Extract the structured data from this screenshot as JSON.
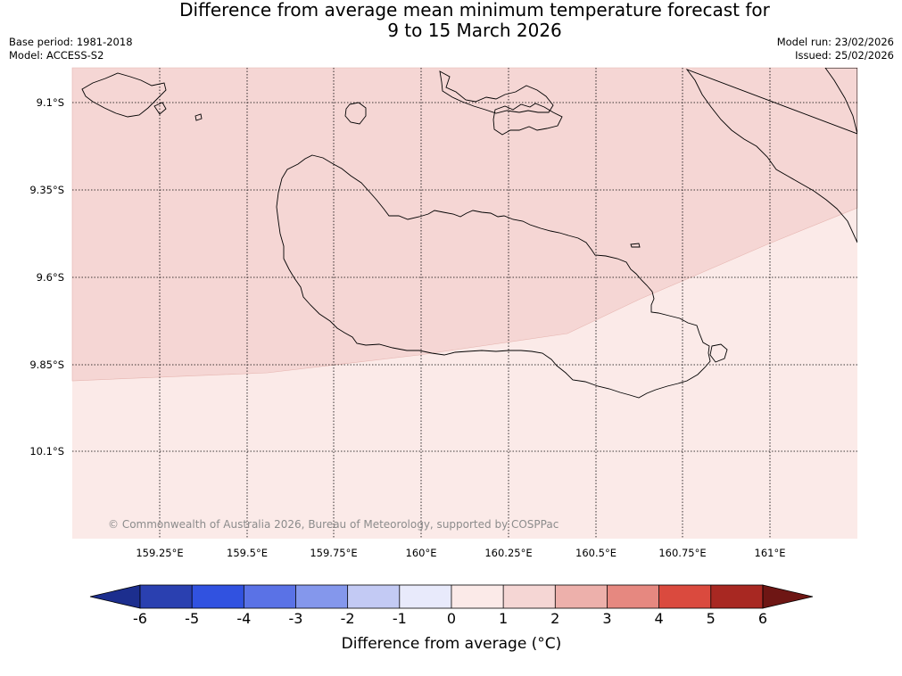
{
  "title": {
    "line1": "Difference from average mean minimum temperature forecast for",
    "line2": "9 to 15 March 2026"
  },
  "info": {
    "base_period": "Base period: 1981-2018",
    "model": "Model: ACCESS-S2",
    "model_run": "Model run: 23/02/2026",
    "issued": "Issued: 25/02/2026"
  },
  "map": {
    "lat_labels": [
      "9.1°S",
      "9.35°S",
      "9.6°S",
      "9.85°S",
      "10.1°S"
    ],
    "lon_labels": [
      "159.25°E",
      "159.5°E",
      "159.75°E",
      "160°E",
      "160.25°E",
      "160.5°E",
      "160.75°E",
      "161°E"
    ],
    "copyright": "© Commonwealth of Australia 2026, Bureau of Meteorology, supported by COSPPac",
    "anomaly_north": "1 to 2",
    "anomaly_south": "0 to 1"
  },
  "colorbar": {
    "ticks": [
      "-6",
      "-5",
      "-4",
      "-3",
      "-2",
      "-1",
      "0",
      "1",
      "2",
      "3",
      "4",
      "5",
      "6"
    ],
    "colors": [
      "#1c2e8e",
      "#2a40b0",
      "#3152e0",
      "#5a72e6",
      "#8497ec",
      "#c3caf4",
      "#e8eafb",
      "#fbeae8",
      "#f5d6d4",
      "#edb0ab",
      "#e68880",
      "#da4a3e",
      "#a82822",
      "#6e1614"
    ],
    "label": "Difference from average (°C)"
  },
  "colors": {
    "anomaly_1_2": "#f5d6d4",
    "anomaly_0_1": "#fbeae8"
  }
}
